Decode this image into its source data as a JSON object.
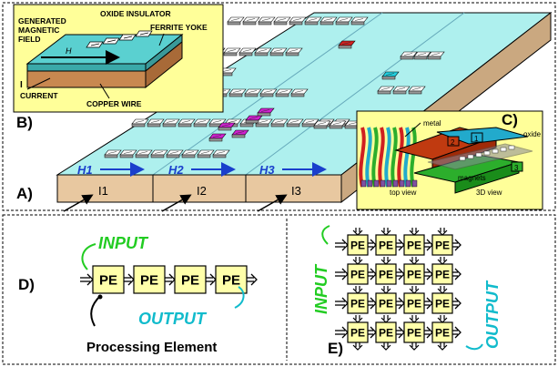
{
  "top_panel": {
    "inset_b": {
      "label": "B)",
      "generated_magnetic_field": [
        "GENERATED",
        "MAGNETIC",
        "FIELD"
      ],
      "oxide_insulator": "OXIDE INSULATOR",
      "ferrite_yoke": "FERRITE YOKE",
      "field_symbol": "H",
      "current_symbol": "I",
      "current_label": "CURRENT",
      "copper_wire": "COPPER WIRE"
    },
    "label_a": "A)",
    "fields": [
      "H1",
      "H2",
      "H3"
    ],
    "currents": [
      "I1",
      "I2",
      "I3"
    ],
    "inset_c": {
      "label": "C)",
      "metal": "metal",
      "oxide": "oxide",
      "magnets": "magnets",
      "top_view": "top view",
      "view_3d": "3D view",
      "wire_numbers": [
        "1",
        "2",
        "3"
      ]
    }
  },
  "bottom_panel": {
    "label_d": "D)",
    "label_e": "E)",
    "input_label": "INPUT",
    "output_label": "OUTPUT",
    "pe_label": "PE",
    "processing_element_caption": "Processing Element"
  },
  "colors": {
    "inset_background": "#ffff99",
    "plane_cyan": "#aef0ee",
    "slab_tan": "#e8c8a0",
    "pe_fill": "#ffffaa",
    "input_green": "#22cc22",
    "output_cyan": "#11bbcc",
    "field_blue": "#1a3fcc",
    "magnet_red": "#d02020",
    "magnet_magenta": "#d020d0",
    "magnet_cyan": "#20d0e0"
  }
}
